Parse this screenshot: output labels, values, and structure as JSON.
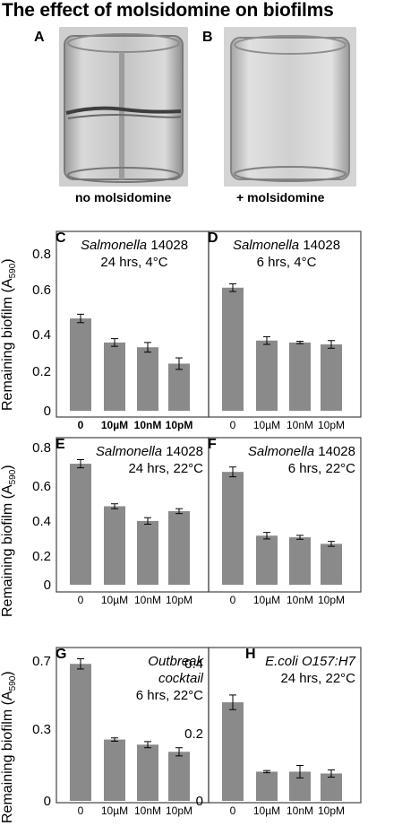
{
  "figure_title": "The effect of molsidomine on biofilms",
  "photos": [
    {
      "letter": "A",
      "caption": "no molsidomine"
    },
    {
      "letter": "B",
      "caption": "+ molsidomine"
    }
  ],
  "ylabel_main": "Remaining biofilm (A",
  "ylabel_sub": "590",
  "ylabel_end": ")",
  "colors": {
    "bar": "#8a8a8a",
    "frame": "#444444",
    "axis": "#000000"
  },
  "chart_data": [
    {
      "panel": "C",
      "type": "bar",
      "categories": [
        "0",
        "10µM",
        "10nM",
        "10pM"
      ],
      "values": [
        0.48,
        0.355,
        0.33,
        0.245
      ],
      "errors": [
        0.022,
        0.02,
        0.025,
        0.03
      ],
      "text_lines": [
        "Salmonella 14028",
        "24 hrs, 4°C"
      ],
      "italic_word": "Salmonella",
      "yticks": [
        "0",
        "0.2",
        "0.4",
        "0.6",
        "0.8"
      ],
      "ylim": [
        0,
        0.9
      ],
      "tick_bold": true
    },
    {
      "panel": "D",
      "type": "bar",
      "categories": [
        "0",
        "10µM",
        "10nM",
        "10pM"
      ],
      "values": [
        0.64,
        0.365,
        0.355,
        0.345
      ],
      "errors": [
        0.02,
        0.02,
        0.006,
        0.02
      ],
      "text_lines": [
        "Salmonella 14028",
        "6 hrs, 4°C"
      ],
      "italic_word": "Salmonella",
      "ylim": [
        0,
        0.9
      ],
      "tick_bold": false
    },
    {
      "panel": "E",
      "type": "bar",
      "categories": [
        "0",
        "10µM",
        "10nM",
        "10pM"
      ],
      "values": [
        0.74,
        0.48,
        0.39,
        0.45
      ],
      "errors": [
        0.025,
        0.015,
        0.02,
        0.015
      ],
      "text_lines": [
        "Salmonella 14028",
        "24 hrs, 22°C"
      ],
      "italic_word": "Salmonella",
      "yticks": [
        "0",
        "0.2",
        "0.4",
        "0.6",
        "0.8"
      ],
      "ylim": [
        0,
        0.85
      ],
      "tick_bold": false
    },
    {
      "panel": "F",
      "type": "bar",
      "categories": [
        "0",
        "10µM",
        "10nM",
        "10pM"
      ],
      "values": [
        0.69,
        0.3,
        0.29,
        0.25
      ],
      "errors": [
        0.03,
        0.02,
        0.012,
        0.015
      ],
      "text_lines": [
        "Salmonella 14028",
        "6 hrs, 22°C"
      ],
      "italic_word": "Salmonella",
      "ylim": [
        0,
        0.85
      ],
      "tick_bold": false
    },
    {
      "panel": "G",
      "type": "bar",
      "categories": [
        "0",
        "10µM",
        "10nM",
        "10pM"
      ],
      "values": [
        0.67,
        0.3,
        0.275,
        0.24
      ],
      "errors": [
        0.025,
        0.008,
        0.015,
        0.02
      ],
      "text_lines": [
        "Outbreak",
        "cocktail",
        "6 hrs, 22°C"
      ],
      "text_italic_lines": [
        0,
        1
      ],
      "yticks": [
        "0",
        "0.3",
        "0.7"
      ],
      "ytick_values": [
        0,
        0.3,
        0.7
      ],
      "ylim": [
        0,
        0.75
      ],
      "tick_bold": false
    },
    {
      "panel": "H",
      "type": "bar",
      "categories": [
        "0",
        "10µM",
        "10nM",
        "10pM"
      ],
      "values": [
        0.27,
        0.08,
        0.08,
        0.075
      ],
      "errors": [
        0.02,
        0.003,
        0.017,
        0.01
      ],
      "text_lines": [
        "E.coli O157:H7",
        "24 hrs, 22°C"
      ],
      "text_italic_lines": [
        0
      ],
      "yticks": [
        "0",
        "0.2",
        "0.4"
      ],
      "ytick_values": [
        0,
        0.2,
        0.4
      ],
      "ylim": [
        0,
        0.42
      ],
      "tick_bold": false
    }
  ]
}
